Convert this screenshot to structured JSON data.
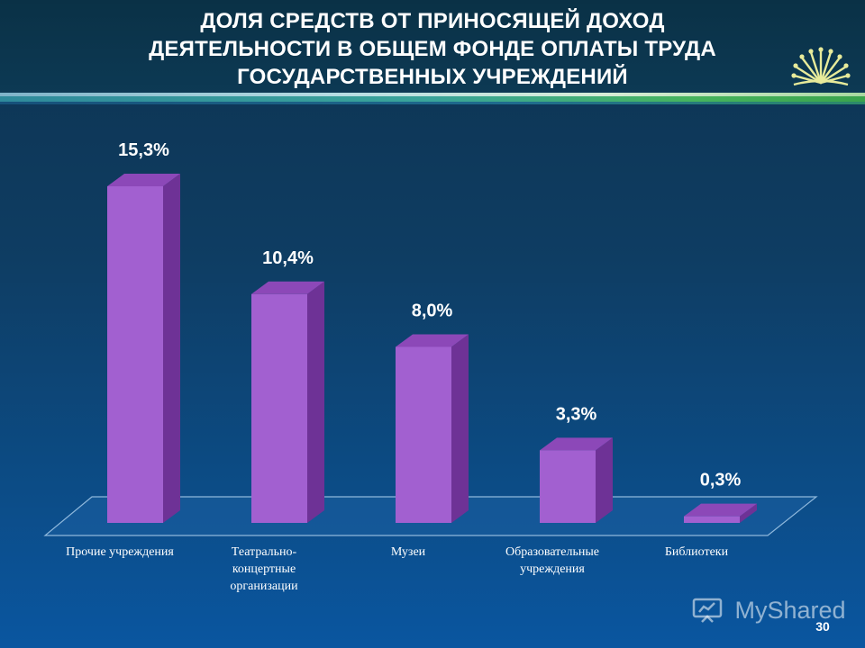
{
  "chart_data": {
    "type": "bar",
    "title": "ДОЛЯ СРЕДСТВ ОТ ПРИНОСЯЩЕЙ ДОХОД ДЕЯТЕЛЬНОСТИ В ОБЩЕМ ФОНДЕ ОПЛАТЫ ТРУДА ГОСУДАРСТВЕННЫХ УЧРЕЖДЕНИЙ",
    "title_lines": [
      "ДОЛЯ СРЕДСТВ ОТ ПРИНОСЯЩЕЙ ДОХОД",
      "ДЕЯТЕЛЬНОСТИ В ОБЩЕМ ФОНДЕ ОПЛАТЫ ТРУДА",
      "ГОСУДАРСТВЕННЫХ УЧРЕЖДЕНИЙ"
    ],
    "categories": [
      "Прочие учреждения",
      "Театрально-концертные организации",
      "Музеи",
      "Образовательные учреждения",
      "Библиотеки"
    ],
    "category_lines": [
      [
        "Прочие учреждения"
      ],
      [
        "Театрально-",
        "концертные",
        "организации"
      ],
      [
        "Музеи"
      ],
      [
        "Образовательные",
        "учреждения"
      ],
      [
        "Библиотеки"
      ]
    ],
    "values": [
      15.3,
      10.4,
      8.0,
      3.3,
      0.3
    ],
    "data_labels": [
      "15,3%",
      "10,4%",
      "8,0%",
      "3,3%",
      "0,3%"
    ],
    "unit": "%",
    "ylim": [
      0,
      15.3
    ],
    "grid": false,
    "legend": "none",
    "bar_color": "#a260d0",
    "bar_top_color": "#8c48b8",
    "bar_side_color": "#6e3296"
  },
  "watermark": "MyShared",
  "page_number": "30"
}
